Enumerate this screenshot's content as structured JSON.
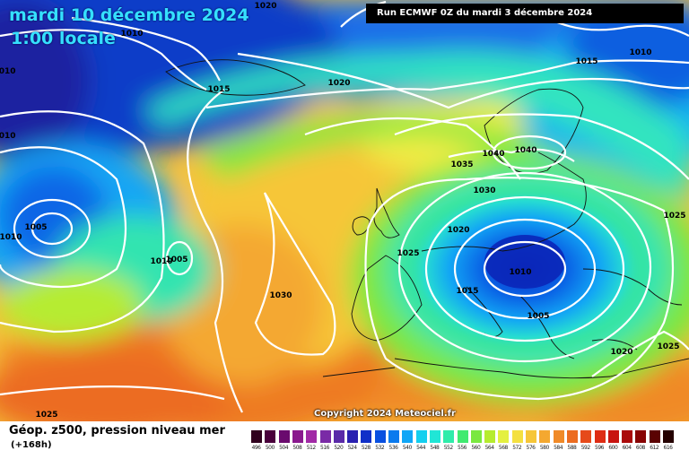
{
  "header": {
    "date": "mardi 10 décembre 2024",
    "time": "1:00 locale",
    "run": "Run ECMWF 0Z du mardi 3 décembre 2024"
  },
  "copyright": "Copyright 2024 Meteociel.fr",
  "pressure_labels": [
    "1020",
    "1010",
    "1010",
    "1010",
    "1015",
    "1005",
    "1010",
    "1010",
    "1005",
    "1020",
    "1015",
    "1010",
    "1040",
    "1035",
    "1040",
    "1030",
    "1020",
    "1025",
    "1025",
    "1030",
    "1010",
    "1015",
    "1005",
    "1020",
    "1025",
    "1025"
  ],
  "legend": {
    "title": "Géop. z500, pression niveau mer",
    "subtitle": "(+168h)",
    "ticks": [
      "496",
      "500",
      "504",
      "508",
      "512",
      "516",
      "520",
      "524",
      "528",
      "532",
      "536",
      "540",
      "544",
      "548",
      "552",
      "556",
      "560",
      "564",
      "568",
      "572",
      "576",
      "580",
      "584",
      "588",
      "592",
      "596",
      "600",
      "604",
      "608",
      "612",
      "616"
    ],
    "colors": [
      "#30001e",
      "#4a003c",
      "#6a0a6e",
      "#8a1a8e",
      "#a12aa6",
      "#7a2aa6",
      "#5a2aa8",
      "#2a20b0",
      "#1030c8",
      "#0a50e0",
      "#0a7aee",
      "#10a6f6",
      "#14cfef",
      "#20e6d6",
      "#30ecaa",
      "#40ea70",
      "#7ae840",
      "#b6ec30",
      "#e4f040",
      "#f4e040",
      "#f6c638",
      "#f4a830",
      "#f08a28",
      "#ec6c20",
      "#e64a1a",
      "#de2c14",
      "#c81410",
      "#aa0a0a",
      "#880404",
      "#5a0202",
      "#240000"
    ]
  },
  "colors": {
    "isobar": "#ffffff",
    "header_text": "#35e0ff"
  }
}
